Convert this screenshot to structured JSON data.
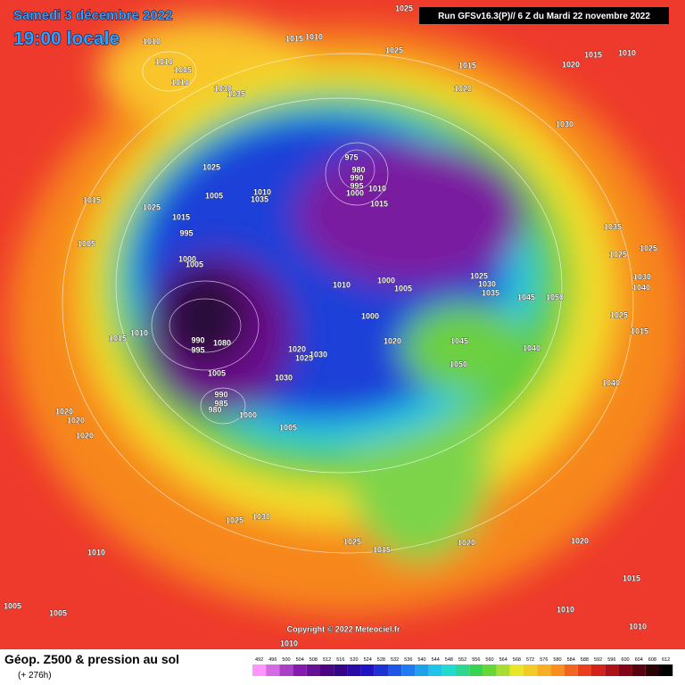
{
  "header": {
    "date": "Samedi 3 décembre 2022",
    "time": "19:00 locale",
    "run": "Run GFSv16.3(P)// 6 Z du Mardi 22 novembre 2022"
  },
  "copyright": "Copyright © 2022 Meteociel.fr",
  "legend": {
    "title": "Géop. Z500 & pression au sol",
    "lead": "(+ 276h)",
    "scale": [
      492,
      496,
      500,
      504,
      508,
      512,
      516,
      520,
      524,
      528,
      532,
      536,
      540,
      544,
      548,
      552,
      556,
      560,
      564,
      568,
      572,
      576,
      580,
      584,
      588,
      592,
      596,
      600,
      604,
      608,
      612
    ]
  },
  "pressure_labels": [
    "1025",
    "1010",
    "1010",
    "1005",
    "1010",
    "1015",
    "1010",
    "1025",
    "1015",
    "1020",
    "1015",
    "1010",
    "1030",
    "1035",
    "1020",
    "1030",
    "1025",
    "975",
    "980",
    "990",
    "995",
    "1000",
    "1010",
    "1005",
    "1010",
    "1035",
    "1025",
    "1015",
    "1015",
    "995",
    "1005",
    "1000",
    "1005",
    "1015",
    "1035",
    "1025",
    "1025",
    "1030",
    "1040",
    "1025",
    "1030",
    "1035",
    "1045",
    "1050",
    "1010",
    "1000",
    "1005",
    "1000",
    "1025",
    "1015",
    "1015",
    "1010",
    "990",
    "995",
    "1080",
    "1020",
    "1025",
    "1030",
    "1045",
    "1020",
    "1040",
    "1050",
    "1005",
    "1030",
    "1040",
    "990",
    "985",
    "980",
    "1000",
    "1005",
    "1020",
    "1020",
    "1020",
    "1025",
    "1030",
    "1010",
    "1025",
    "1015",
    "1020",
    "1020",
    "1015",
    "1005",
    "1005",
    "1010",
    "1010",
    "1010"
  ]
}
